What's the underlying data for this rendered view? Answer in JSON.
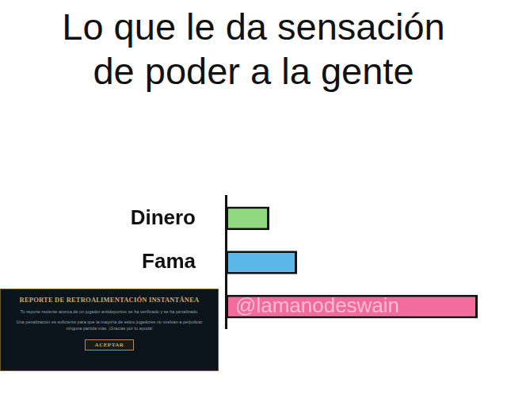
{
  "chart_data": {
    "type": "bar",
    "orientation": "horizontal",
    "title": [
      "Lo que le da sensación",
      "de poder a la gente"
    ],
    "categories": [
      "Dinero",
      "Fama",
      null
    ],
    "values": [
      55,
      90,
      318
    ],
    "colors": [
      "#90d97e",
      "#5ab8e8",
      "#f26b9b"
    ],
    "xlim": [
      0,
      330
    ],
    "grid": false,
    "tick_labels": "y",
    "watermark": "@lamanodeswain"
  },
  "report_panel": {
    "title": "REPORTE DE RETROALIMENTACIÓN INSTANTÁNEA",
    "paragraphs": [
      "Tu reporte reciente acerca de un jugador antideportivo se ha verificado y se ha penalizado.",
      "Una penalización es suficiente para que la mayoría de estos jugadores no vuelvan a perjudicar ninguna partida más. ¡Gracias por tu ayuda!"
    ],
    "button": "ACEPTAR"
  }
}
